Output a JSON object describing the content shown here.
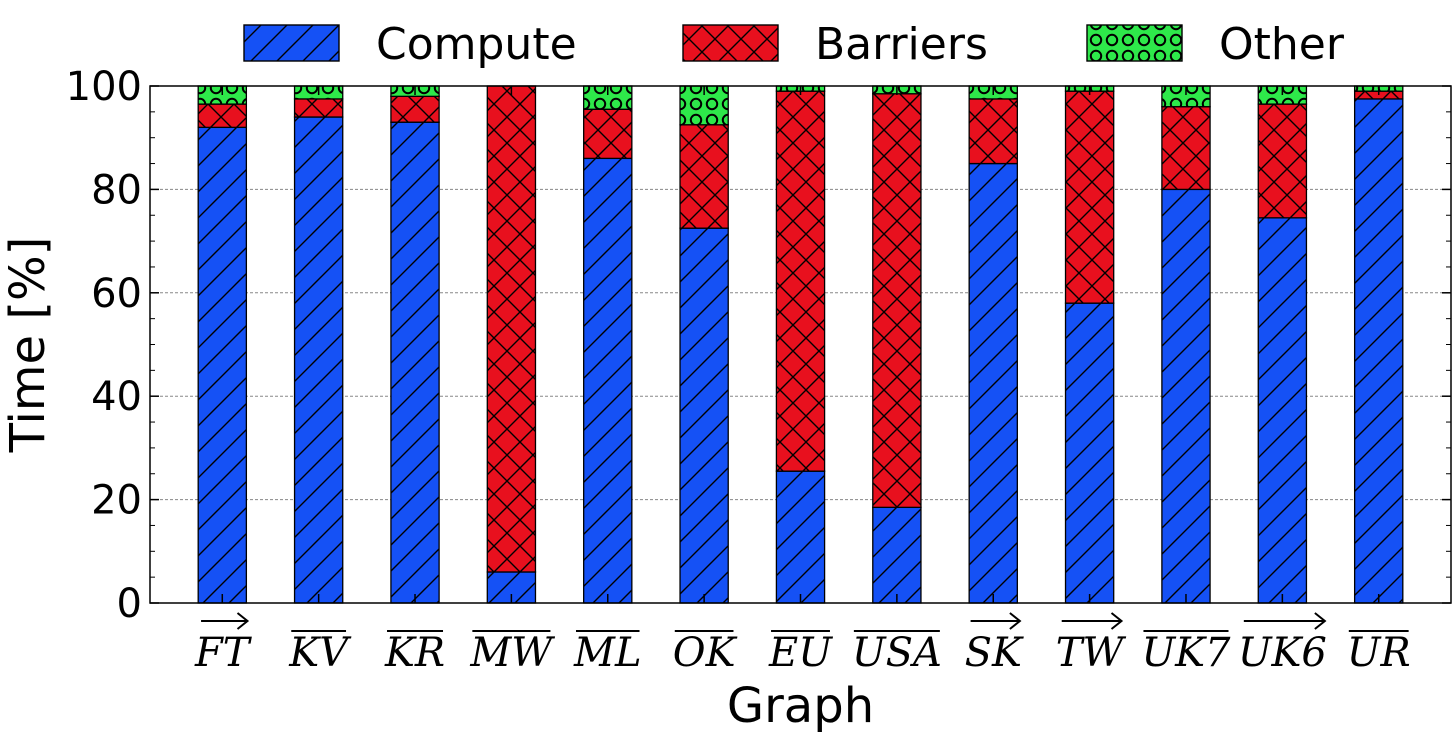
{
  "chart_data": {
    "type": "bar",
    "stacked": true,
    "title": "",
    "xlabel": "Graph",
    "ylabel": "Time [%]",
    "ylim": [
      0,
      100
    ],
    "yticks": [
      0,
      20,
      40,
      60,
      80,
      100
    ],
    "grid": "horizontal dashed",
    "legend_position": "top",
    "categories": [
      {
        "label": "FT",
        "accent": "arrow"
      },
      {
        "label": "KV",
        "accent": "bar"
      },
      {
        "label": "KR",
        "accent": "bar"
      },
      {
        "label": "MW",
        "accent": "bar"
      },
      {
        "label": "ML",
        "accent": "bar"
      },
      {
        "label": "OK",
        "accent": "bar"
      },
      {
        "label": "EU",
        "accent": "bar"
      },
      {
        "label": "USA",
        "accent": "bar"
      },
      {
        "label": "SK",
        "accent": "arrow"
      },
      {
        "label": "TW",
        "accent": "arrow"
      },
      {
        "label": "UK7",
        "accent": "bar"
      },
      {
        "label": "UK6",
        "accent": "arrow"
      },
      {
        "label": "UR",
        "accent": "bar"
      }
    ],
    "series": [
      {
        "name": "Compute",
        "color": "#1551f5",
        "pattern": "diagonal",
        "values": [
          92,
          94,
          93,
          6,
          86,
          72.5,
          25.5,
          18.5,
          85,
          58,
          80,
          74.5,
          97.5
        ]
      },
      {
        "name": "Barriers",
        "color": "#e8101e",
        "pattern": "crosshatch",
        "values": [
          4.5,
          3.5,
          5,
          94,
          9.5,
          20,
          73.5,
          80,
          12.5,
          41,
          16,
          22,
          1.5
        ]
      },
      {
        "name": "Other",
        "color": "#2ee84a",
        "pattern": "circles",
        "values": [
          3.5,
          2.5,
          2,
          0,
          4.5,
          7.5,
          1,
          1.5,
          2.5,
          1,
          4,
          3.5,
          1
        ]
      }
    ]
  }
}
